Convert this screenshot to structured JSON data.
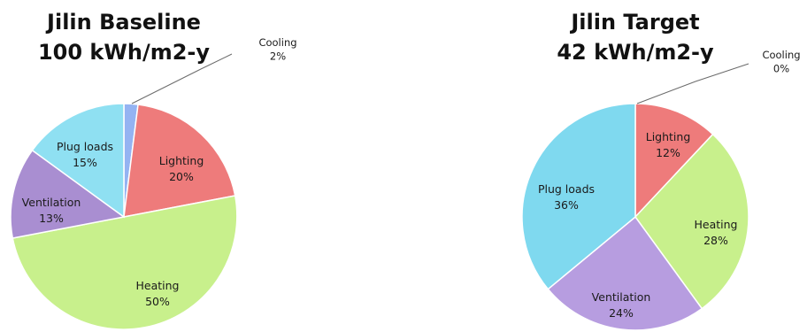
{
  "chart_data": [
    {
      "type": "pie",
      "title": "Jilin Baseline",
      "subtitle": "100 kWh/m2-y",
      "slices": [
        {
          "label": "Cooling",
          "value": 2,
          "value_label": "2%",
          "color": "#94b3f2"
        },
        {
          "label": "Lighting",
          "value": 20,
          "value_label": "20%",
          "color": "#ee7b7b"
        },
        {
          "label": "Heating",
          "value": 50,
          "value_label": "50%",
          "color": "#c8f08c"
        },
        {
          "label": "Ventilation",
          "value": 13,
          "value_label": "13%",
          "color": "#a98ed1"
        },
        {
          "label": "Plug loads",
          "value": 15,
          "value_label": "15%",
          "color": "#8fe0f2"
        }
      ]
    },
    {
      "type": "pie",
      "title": "Jilin Target",
      "subtitle": "42 kWh/m2-y",
      "slices": [
        {
          "label": "Cooling",
          "value": 0,
          "value_label": "0%",
          "color": "#94b3f2"
        },
        {
          "label": "Lighting",
          "value": 12,
          "value_label": "12%",
          "color": "#ee7b7b"
        },
        {
          "label": "Heating",
          "value": 28,
          "value_label": "28%",
          "color": "#c8f08c"
        },
        {
          "label": "Ventilation",
          "value": 24,
          "value_label": "24%",
          "color": "#b79de0"
        },
        {
          "label": "Plug loads",
          "value": 36,
          "value_label": "36%",
          "color": "#7fd9ef"
        }
      ]
    }
  ]
}
